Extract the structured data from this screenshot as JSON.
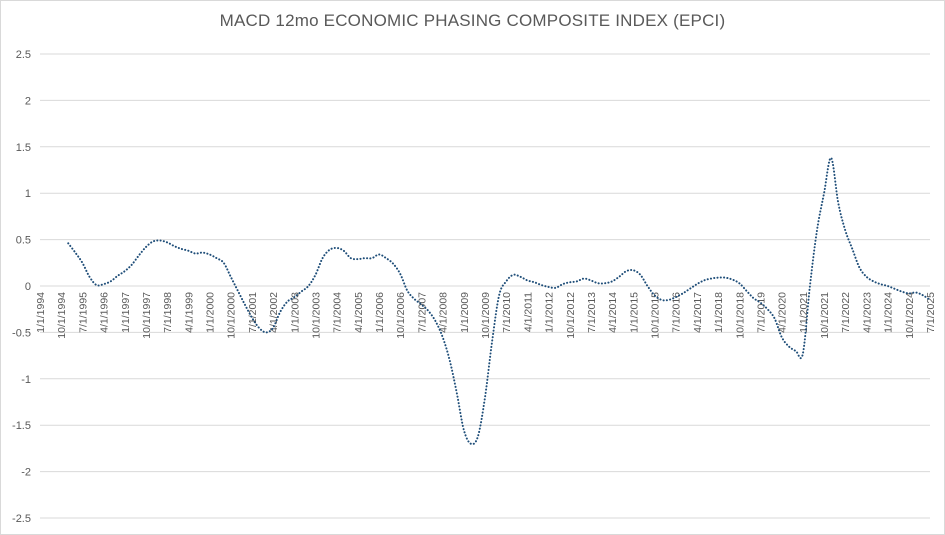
{
  "chart_data": {
    "type": "line",
    "title": "MACD 12mo ECONOMIC PHASING COMPOSITE INDEX (EPCI)",
    "xlabel": "",
    "ylabel": "",
    "ylim": [
      -2.5,
      2.5
    ],
    "yticks": [
      2.5,
      2,
      1.5,
      1,
      0.5,
      0,
      -0.5,
      -1,
      -1.5,
      -2,
      -2.5
    ],
    "ytick_labels": [
      "2.5",
      "2",
      "1.5",
      "1",
      "0.5",
      "0",
      "-0.5",
      "-1",
      "-1.5",
      "-2",
      "-2.5"
    ],
    "xticks": [
      "1/1/1994",
      "10/1/1994",
      "7/1/1995",
      "4/1/1996",
      "1/1/1997",
      "10/1/1997",
      "7/1/1998",
      "4/1/1999",
      "1/1/2000",
      "10/1/2000",
      "7/1/2001",
      "4/1/2002",
      "1/1/2003",
      "10/1/2003",
      "7/1/2004",
      "4/1/2005",
      "1/1/2006",
      "10/1/2006",
      "7/1/2007",
      "4/1/2008",
      "1/1/2009",
      "10/1/2009",
      "7/1/2010",
      "4/1/2011",
      "1/1/2012",
      "10/1/2012",
      "7/1/2013",
      "4/1/2014",
      "1/1/2015",
      "10/1/2015",
      "7/1/2016",
      "4/1/2017",
      "1/1/2018",
      "10/1/2018",
      "7/1/2019",
      "4/1/2020",
      "1/1/2021",
      "10/1/2021",
      "7/1/2022",
      "4/1/2023",
      "1/1/2024",
      "10/1/2024",
      "7/1/2025"
    ],
    "grid": true,
    "line_color": "#1f4e79",
    "line_style": "dotted",
    "series": [
      {
        "x": [
          "1995-01",
          "1995-04",
          "1995-07",
          "1995-10",
          "1996-01",
          "1996-04",
          "1996-07",
          "1996-10",
          "1997-01",
          "1997-04",
          "1997-07",
          "1997-10",
          "1998-01",
          "1998-04",
          "1998-07",
          "1998-10",
          "1999-01",
          "1999-04",
          "1999-07",
          "1999-10",
          "2000-01",
          "2000-04",
          "2000-07",
          "2000-10",
          "2001-01",
          "2001-04",
          "2001-07",
          "2001-10",
          "2002-01",
          "2002-04",
          "2002-07",
          "2002-10",
          "2003-01",
          "2003-04",
          "2003-07",
          "2003-10",
          "2004-01",
          "2004-04",
          "2004-07",
          "2004-10",
          "2005-01",
          "2005-04",
          "2005-07",
          "2005-10",
          "2006-01",
          "2006-04",
          "2006-07",
          "2006-10",
          "2007-01",
          "2007-04",
          "2007-07",
          "2007-10",
          "2008-01",
          "2008-04",
          "2008-07",
          "2008-10",
          "2009-01",
          "2009-04",
          "2009-07",
          "2009-10",
          "2010-01",
          "2010-04",
          "2010-07",
          "2010-10",
          "2011-01",
          "2011-04",
          "2011-07",
          "2011-10",
          "2012-01",
          "2012-04",
          "2012-07",
          "2012-10",
          "2013-01",
          "2013-04",
          "2013-07",
          "2013-10",
          "2014-01",
          "2014-04",
          "2014-07",
          "2014-10",
          "2015-01",
          "2015-04",
          "2015-07",
          "2015-10",
          "2016-01",
          "2016-04",
          "2016-07",
          "2016-10",
          "2017-01",
          "2017-04",
          "2017-07",
          "2017-10",
          "2018-01",
          "2018-04",
          "2018-07",
          "2018-10",
          "2019-01",
          "2019-04",
          "2019-07",
          "2019-10",
          "2020-01",
          "2020-04",
          "2020-07",
          "2020-10",
          "2021-01",
          "2021-04",
          "2021-07",
          "2021-10",
          "2022-01",
          "2022-04",
          "2022-07",
          "2022-10",
          "2023-01",
          "2023-04",
          "2023-07",
          "2023-10",
          "2024-01",
          "2024-04",
          "2024-07",
          "2024-10",
          "2025-01",
          "2025-04",
          "2025-07"
        ],
        "values": [
          0.46,
          0.36,
          0.25,
          0.1,
          0.01,
          0.02,
          0.05,
          0.11,
          0.16,
          0.23,
          0.33,
          0.42,
          0.48,
          0.49,
          0.47,
          0.43,
          0.4,
          0.38,
          0.35,
          0.36,
          0.34,
          0.3,
          0.25,
          0.1,
          -0.05,
          -0.2,
          -0.34,
          -0.45,
          -0.5,
          -0.45,
          -0.28,
          -0.17,
          -0.12,
          -0.06,
          0.0,
          0.12,
          0.3,
          0.39,
          0.41,
          0.38,
          0.3,
          0.29,
          0.3,
          0.3,
          0.34,
          0.3,
          0.24,
          0.13,
          -0.05,
          -0.14,
          -0.2,
          -0.27,
          -0.38,
          -0.55,
          -0.8,
          -1.15,
          -1.55,
          -1.7,
          -1.62,
          -1.2,
          -0.6,
          -0.1,
          0.05,
          0.12,
          0.1,
          0.06,
          0.04,
          0.01,
          -0.01,
          -0.02,
          0.02,
          0.04,
          0.05,
          0.08,
          0.06,
          0.03,
          0.03,
          0.05,
          0.1,
          0.16,
          0.17,
          0.12,
          0.0,
          -0.1,
          -0.15,
          -0.15,
          -0.12,
          -0.08,
          -0.03,
          0.02,
          0.06,
          0.08,
          0.09,
          0.09,
          0.07,
          0.03,
          -0.05,
          -0.13,
          -0.18,
          -0.25,
          -0.35,
          -0.55,
          -0.65,
          -0.7,
          -0.73,
          0.0,
          0.6,
          1.0,
          1.38,
          0.9,
          0.6,
          0.4,
          0.2,
          0.1,
          0.05,
          0.02,
          0.0,
          -0.03,
          -0.06,
          -0.08,
          -0.07,
          -0.1,
          -0.15
        ]
      }
    ]
  }
}
